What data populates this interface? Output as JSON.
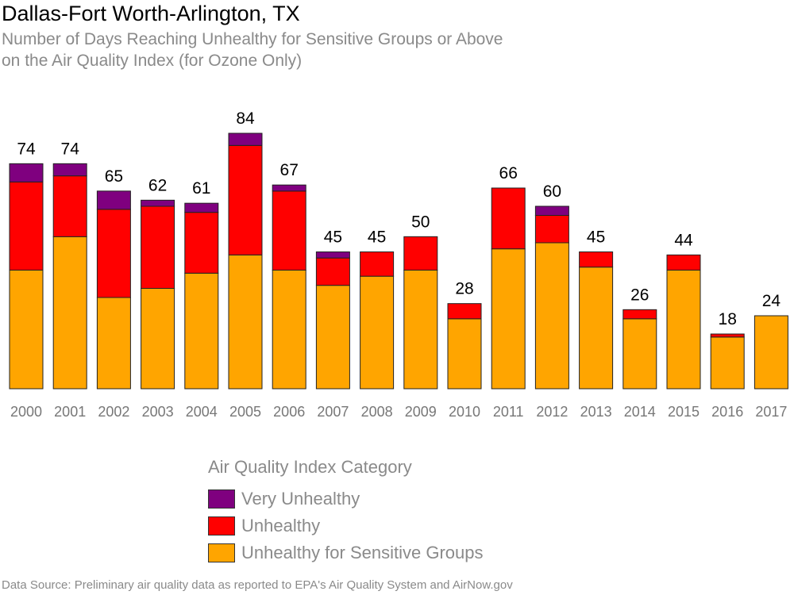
{
  "title": "Dallas-Fort Worth-Arlington, TX",
  "subtitle_line1": "Number of Days Reaching Unhealthy for Sensitive Groups or Above",
  "subtitle_line2": "on the Air Quality Index (for Ozone Only)",
  "legend": {
    "title": "Air Quality Index Category",
    "items": [
      {
        "label": "Very Unhealthy",
        "color": "#7f007f"
      },
      {
        "label": "Unhealthy",
        "color": "#ff0000"
      },
      {
        "label": "Unhealthy for Sensitive Groups",
        "color": "#ffa500"
      }
    ]
  },
  "source": "Data Source: Preliminary air quality data as reported to EPA's Air Quality System and AirNow.gov",
  "chart_data": {
    "type": "bar",
    "stacked": true,
    "categories": [
      "2000",
      "2001",
      "2002",
      "2003",
      "2004",
      "2005",
      "2006",
      "2007",
      "2008",
      "2009",
      "2010",
      "2011",
      "2012",
      "2013",
      "2014",
      "2015",
      "2016",
      "2017"
    ],
    "series": [
      {
        "name": "Unhealthy for Sensitive Groups",
        "color": "#ffa500",
        "values": [
          39,
          50,
          30,
          33,
          38,
          44,
          39,
          34,
          37,
          39,
          23,
          46,
          48,
          40,
          23,
          39,
          17,
          24
        ]
      },
      {
        "name": "Unhealthy",
        "color": "#ff0000",
        "values": [
          29,
          20,
          29,
          27,
          20,
          36,
          26,
          9,
          8,
          11,
          5,
          20,
          9,
          5,
          3,
          5,
          1,
          0
        ]
      },
      {
        "name": "Very Unhealthy",
        "color": "#7f007f",
        "values": [
          6,
          4,
          6,
          2,
          3,
          4,
          2,
          2,
          0,
          0,
          0,
          0,
          3,
          0,
          0,
          0,
          0,
          0
        ]
      }
    ],
    "totals": [
      74,
      74,
      65,
      62,
      61,
      84,
      67,
      45,
      45,
      50,
      28,
      66,
      60,
      45,
      26,
      44,
      18,
      24
    ],
    "ylim": [
      0,
      84
    ],
    "grid": false,
    "legend_position": "bottom"
  }
}
